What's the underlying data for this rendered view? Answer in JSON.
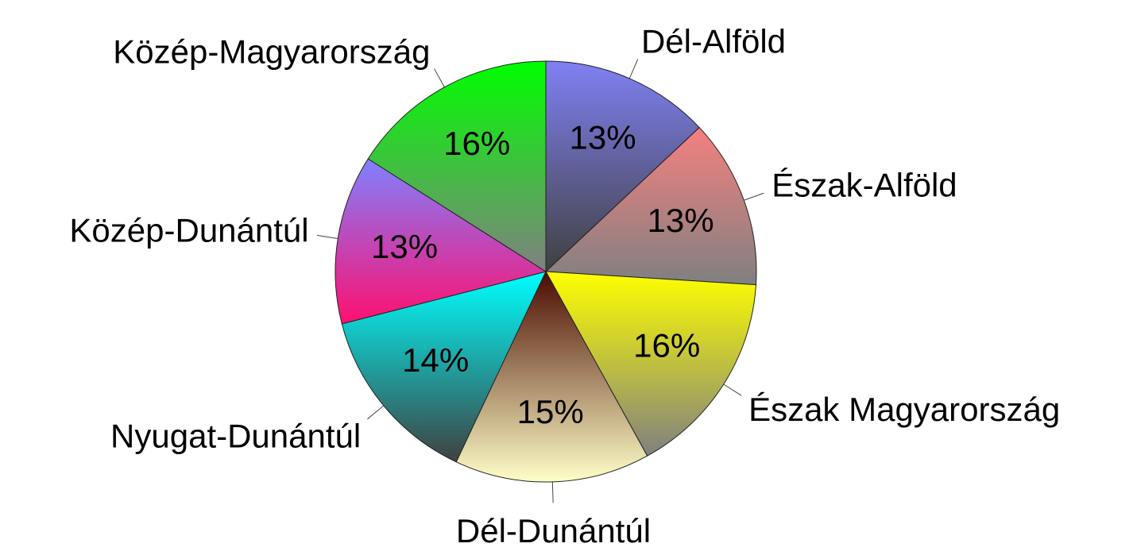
{
  "chart_data": {
    "type": "pie",
    "categories": [
      "Dél-Alföld",
      "Észak-Alföld",
      "Észak Magyarország",
      "Dél-Dunántúl",
      "Nyugat-Dunántúl",
      "Közép-Dunántúl",
      "Közép-Magyarország"
    ],
    "values": [
      13,
      13,
      16,
      15,
      14,
      13,
      16
    ],
    "value_labels": [
      "13%",
      "13%",
      "16%",
      "15%",
      "14%",
      "13%",
      "16%"
    ],
    "colors": [
      "#8080f4",
      "#f48080",
      "#ffff00",
      "#4a0a00",
      "#00ffff",
      "#8080ff",
      "#00ff00"
    ],
    "gradient_colors": [
      "#404040",
      "#808080",
      "#808080",
      "#ffffc8",
      "#404040",
      "#ff1070",
      "#808080"
    ]
  }
}
